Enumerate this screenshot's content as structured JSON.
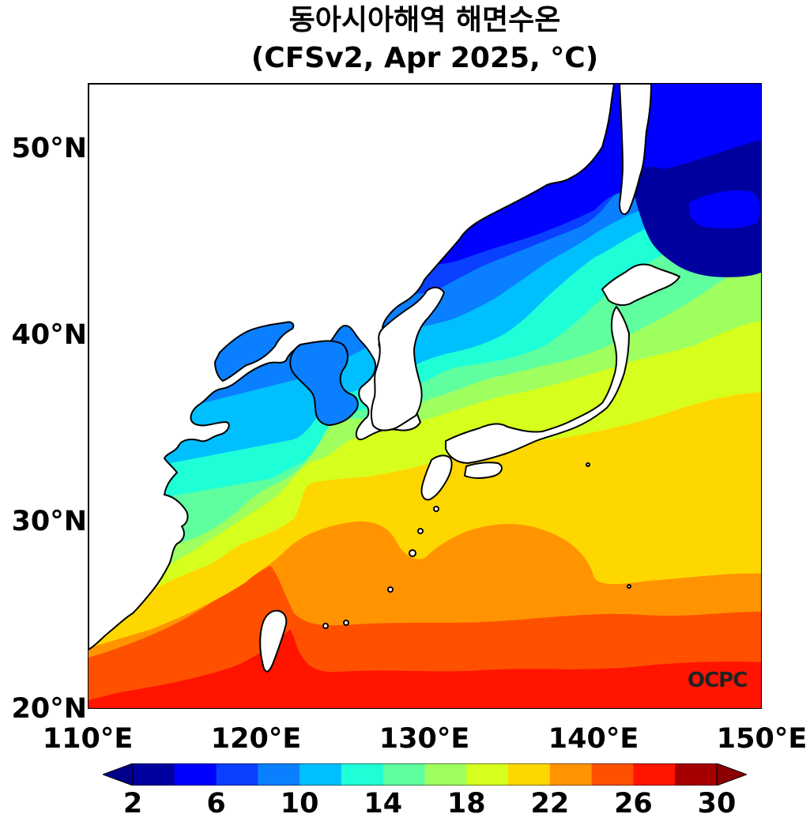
{
  "title": {
    "line1": "동아시아해역 해면수온",
    "line2": "(CFSv2, Apr 2025, °C)"
  },
  "map": {
    "lon_range": [
      110,
      150
    ],
    "lat_range": [
      20,
      53.5
    ],
    "lat_ticks": [
      "50°N",
      "40°N",
      "30°N",
      "20°N"
    ],
    "lon_ticks": [
      "110°E",
      "120°E",
      "130°E",
      "140°E",
      "150°E"
    ],
    "land_color": "#ffffff",
    "coast_color": "#000000"
  },
  "watermark": "OCPC",
  "colorbar": {
    "levels": [
      2,
      4,
      6,
      8,
      10,
      12,
      14,
      16,
      18,
      20,
      22,
      24,
      26,
      28,
      30
    ],
    "labels": [
      "2",
      "6",
      "10",
      "14",
      "18",
      "22",
      "26",
      "30"
    ],
    "colors": [
      "#00009f",
      "#0000ff",
      "#0a40ff",
      "#0a7fff",
      "#00bfff",
      "#1effd7",
      "#5fff9f",
      "#9fff5f",
      "#d6ff1e",
      "#ffd700",
      "#ff9400",
      "#ff5000",
      "#ff1400",
      "#a50000"
    ],
    "under_color": "#00008b",
    "over_color": "#8b0000",
    "extend": "both"
  }
}
